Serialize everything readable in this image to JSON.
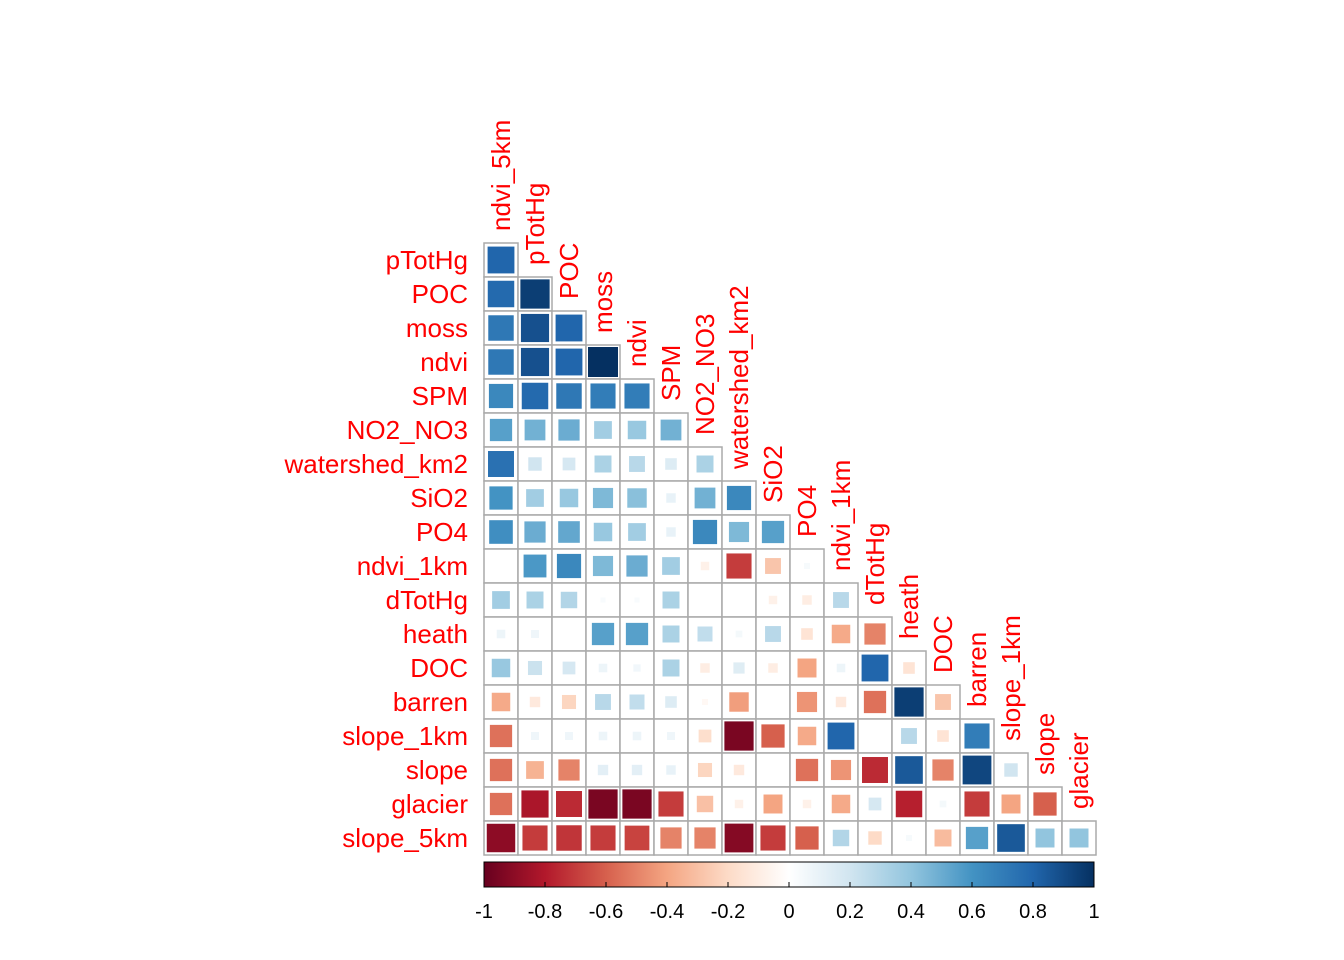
{
  "chart_data": {
    "type": "heatmap",
    "subtype": "correlation-matrix-lower-triangle",
    "variables": [
      "ndvi_5km",
      "pTotHg",
      "POC",
      "moss",
      "ndvi",
      "SPM",
      "NO2_NO3",
      "watershed_km2",
      "SiO2",
      "PO4",
      "ndvi_1km",
      "dTotHg",
      "heath",
      "DOC",
      "barren",
      "slope_1km",
      "slope",
      "glacier",
      "slope_5km"
    ],
    "row_labels": [
      "pTotHg",
      "POC",
      "moss",
      "ndvi",
      "SPM",
      "NO2_NO3",
      "watershed_km2",
      "SiO2",
      "PO4",
      "ndvi_1km",
      "dTotHg",
      "heath",
      "DOC",
      "barren",
      "slope_1km",
      "slope",
      "glacier",
      "slope_5km"
    ],
    "column_labels": [
      "ndvi_5km",
      "pTotHg",
      "POC",
      "moss",
      "ndvi",
      "SPM",
      "NO2_NO3",
      "watershed_km2",
      "SiO2",
      "PO4",
      "ndvi_1km",
      "dTotHg",
      "heath",
      "DOC",
      "barren",
      "slope_1km",
      "slope",
      "glacier"
    ],
    "values": [
      [
        0.8
      ],
      [
        0.78,
        0.95
      ],
      [
        0.72,
        0.88,
        0.8
      ],
      [
        0.72,
        0.88,
        0.8,
        1.0
      ],
      [
        0.65,
        0.78,
        0.72,
        0.7,
        0.7
      ],
      [
        0.55,
        0.48,
        0.5,
        0.35,
        0.38,
        0.48
      ],
      [
        0.75,
        0.2,
        0.18,
        0.32,
        0.28,
        0.15,
        0.32
      ],
      [
        0.6,
        0.35,
        0.38,
        0.45,
        0.42,
        0.1,
        0.48,
        0.65
      ],
      [
        0.62,
        0.5,
        0.52,
        0.38,
        0.35,
        0.1,
        0.65,
        0.45,
        0.55
      ],
      [
        0.0,
        0.58,
        0.65,
        0.45,
        0.5,
        0.35,
        -0.08,
        -0.7,
        -0.28,
        0.04
      ],
      [
        0.35,
        0.32,
        0.3,
        0.03,
        0.03,
        0.32,
        0.0,
        0.0,
        -0.08,
        -0.1,
        0.28
      ],
      [
        0.08,
        0.07,
        0.0,
        0.55,
        0.55,
        0.32,
        0.25,
        0.05,
        0.28,
        -0.15,
        -0.38,
        -0.5
      ],
      [
        0.38,
        0.22,
        0.18,
        0.08,
        0.06,
        0.32,
        -0.1,
        0.14,
        -0.1,
        -0.4,
        0.08,
        0.8,
        -0.15
      ],
      [
        -0.38,
        -0.12,
        -0.22,
        0.28,
        0.25,
        0.15,
        -0.04,
        -0.42,
        0.0,
        -0.45,
        -0.12,
        -0.55,
        0.95,
        -0.28
      ],
      [
        -0.55,
        0.07,
        0.07,
        0.08,
        0.08,
        0.07,
        -0.18,
        -0.95,
        -0.6,
        -0.38,
        0.8,
        0.0,
        0.28,
        -0.15,
        0.7
      ],
      [
        -0.55,
        -0.35,
        -0.5,
        0.12,
        0.12,
        0.1,
        -0.22,
        -0.12,
        0.0,
        -0.55,
        -0.45,
        -0.75,
        0.85,
        -0.5,
        0.92,
        0.2
      ],
      [
        -0.55,
        -0.82,
        -0.75,
        -0.95,
        -0.95,
        -0.7,
        -0.3,
        -0.08,
        -0.4,
        -0.08,
        -0.38,
        0.18,
        -0.78,
        0.05,
        -0.7,
        -0.4,
        -0.6
      ],
      [
        -0.9,
        -0.7,
        -0.72,
        -0.7,
        -0.68,
        -0.5,
        -0.5,
        -0.92,
        -0.7,
        -0.6,
        0.3,
        -0.2,
        0.04,
        -0.32,
        0.55,
        0.85,
        0.4,
        0.4
      ]
    ],
    "colorbar": {
      "min": -1,
      "max": 1,
      "ticks": [
        "-1",
        "-0.8",
        "-0.6",
        "-0.4",
        "-0.2",
        "0",
        "0.2",
        "0.4",
        "0.6",
        "0.8",
        "1"
      ],
      "colors": [
        "#67001f",
        "#b2182b",
        "#d6604d",
        "#f4a582",
        "#fddbc7",
        "#ffffff",
        "#d1e5f0",
        "#92c5de",
        "#4393c3",
        "#2166ac",
        "#053061"
      ]
    },
    "label_color": "#ff0000"
  }
}
